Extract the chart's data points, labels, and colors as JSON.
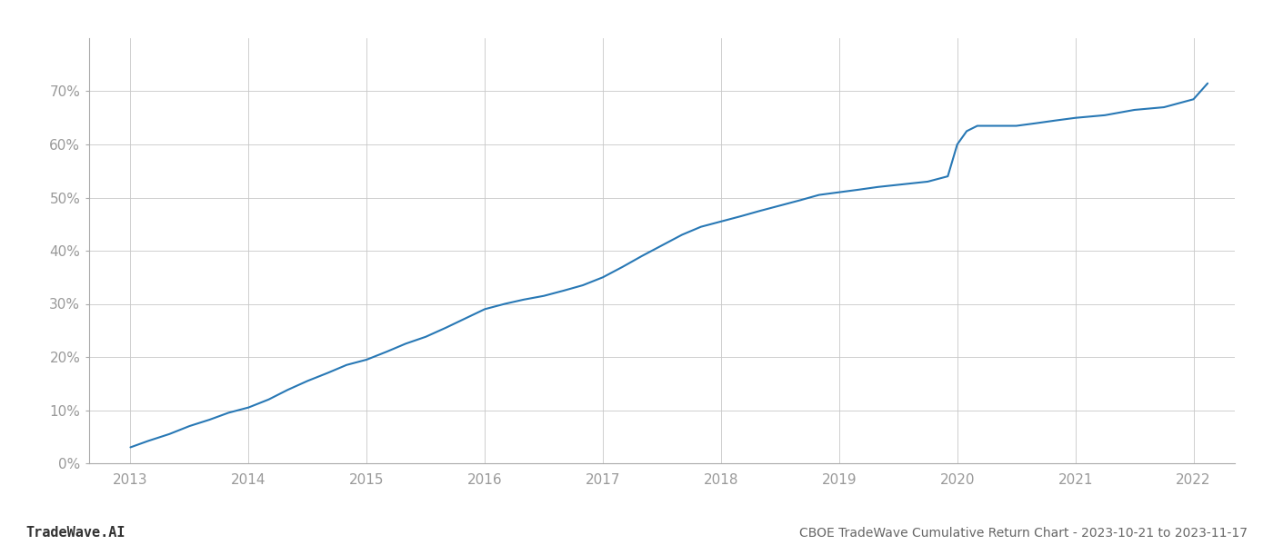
{
  "title": "CBOE TradeWave Cumulative Return Chart - 2023-10-21 to 2023-11-17",
  "watermark": "TradeWave.AI",
  "line_color": "#2878b5",
  "background_color": "#ffffff",
  "grid_color": "#c8c8c8",
  "x_years": [
    2013,
    2014,
    2015,
    2016,
    2017,
    2018,
    2019,
    2020,
    2021,
    2022
  ],
  "x_values": [
    2013.0,
    2013.15,
    2013.33,
    2013.5,
    2013.67,
    2013.83,
    2014.0,
    2014.17,
    2014.33,
    2014.5,
    2014.67,
    2014.83,
    2015.0,
    2015.17,
    2015.33,
    2015.5,
    2015.67,
    2015.83,
    2016.0,
    2016.17,
    2016.33,
    2016.5,
    2016.67,
    2016.83,
    2017.0,
    2017.17,
    2017.33,
    2017.5,
    2017.67,
    2017.83,
    2018.0,
    2018.17,
    2018.33,
    2018.5,
    2018.67,
    2018.83,
    2019.0,
    2019.17,
    2019.33,
    2019.75,
    2019.92,
    2020.0,
    2020.08,
    2020.17,
    2020.5,
    2020.67,
    2020.83,
    2021.0,
    2021.25,
    2021.5,
    2021.75,
    2022.0,
    2022.12
  ],
  "y_values": [
    3.0,
    4.2,
    5.5,
    7.0,
    8.2,
    9.5,
    10.5,
    12.0,
    13.8,
    15.5,
    17.0,
    18.5,
    19.5,
    21.0,
    22.5,
    23.8,
    25.5,
    27.2,
    29.0,
    30.0,
    30.8,
    31.5,
    32.5,
    33.5,
    35.0,
    37.0,
    39.0,
    41.0,
    43.0,
    44.5,
    45.5,
    46.5,
    47.5,
    48.5,
    49.5,
    50.5,
    51.0,
    51.5,
    52.0,
    53.0,
    54.0,
    60.0,
    62.5,
    63.5,
    63.5,
    64.0,
    64.5,
    65.0,
    65.5,
    66.5,
    67.0,
    68.5,
    71.5
  ],
  "ylim": [
    0,
    80
  ],
  "yticks": [
    0,
    10,
    20,
    30,
    40,
    50,
    60,
    70
  ],
  "xlim": [
    2012.65,
    2022.35
  ],
  "title_fontsize": 10,
  "watermark_fontsize": 11,
  "tick_fontsize": 11,
  "tick_color": "#999999",
  "title_color": "#666666",
  "watermark_color": "#333333",
  "watermark_bold": true,
  "line_width": 1.5
}
